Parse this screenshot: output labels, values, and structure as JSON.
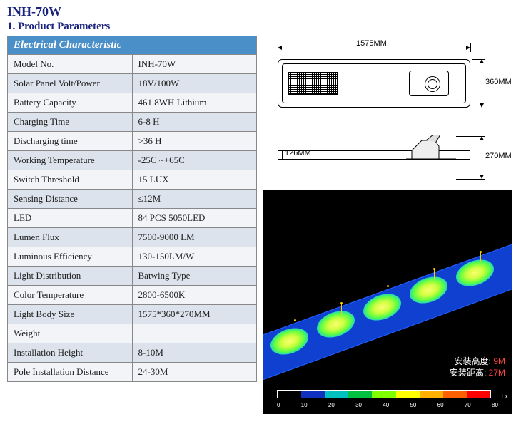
{
  "title": "INH-70W",
  "subtitle": "1. Product Parameters",
  "table": {
    "header": "Electrical Characteristic",
    "rows": [
      {
        "label": "Model No.",
        "value": "INH-70W"
      },
      {
        "label": "Solar Panel Volt/Power",
        "value": "18V/100W"
      },
      {
        "label": "Battery Capacity",
        "value": "461.8WH Lithium"
      },
      {
        "label": "Charging Time",
        "value": "6-8 H"
      },
      {
        "label": "Discharging time",
        "value": ">36 H"
      },
      {
        "label": "Working Temperature",
        "value": "-25C ~+65C"
      },
      {
        "label": "Switch Threshold",
        "value": "15 LUX"
      },
      {
        "label": "Sensing Distance",
        "value": "≤12M"
      },
      {
        "label": "LED",
        "value": "84 PCS 5050LED"
      },
      {
        "label": "Lumen Flux",
        "value": "7500-9000 LM"
      },
      {
        "label": "Luminous Efficiency",
        "value": "130-150LM/W"
      },
      {
        "label": "Light Distribution",
        "value": "Batwing Type"
      },
      {
        "label": "Color Temperature",
        "value": "2800-6500K"
      },
      {
        "label": "Light Body Size",
        "value": "1575*360*270MM"
      },
      {
        "label": "Weight",
        "value": ""
      },
      {
        "label": "Installation Height",
        "value": "8-10M"
      },
      {
        "label": "Pole Installation Distance",
        "value": "24-30M"
      }
    ]
  },
  "drawing": {
    "dim_length": "1575MM",
    "dim_width": "360MM",
    "dim_height": "270MM",
    "dim_thick": "126MM"
  },
  "lightmap": {
    "annot_height_label": "安装高度:",
    "annot_height_value": "9M",
    "annot_dist_label": "安装距离:",
    "annot_dist_value": "27M",
    "colorbar_colors": [
      "#000000",
      "#1030c0",
      "#00c0c0",
      "#00c040",
      "#80ff00",
      "#ffff00",
      "#ffb000",
      "#ff6000",
      "#ff0000"
    ],
    "colorbar_ticks": [
      "0",
      "10",
      "20",
      "30",
      "40",
      "50",
      "60",
      "70",
      "80"
    ],
    "colorbar_unit": "Lx"
  }
}
